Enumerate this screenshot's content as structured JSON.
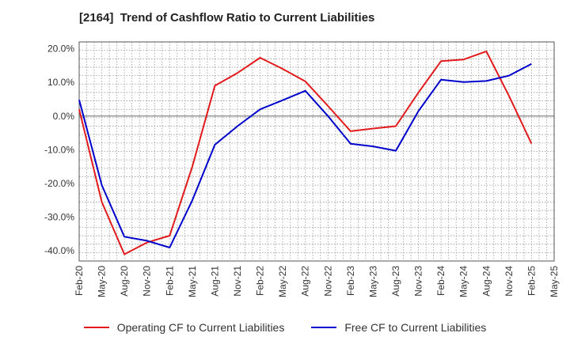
{
  "chart_data": {
    "type": "line",
    "title": "[2164]  Trend of Cashflow Ratio to Current Liabilities",
    "xlabel": "",
    "ylabel": "",
    "x": [
      "Feb-20",
      "May-20",
      "Aug-20",
      "Nov-20",
      "Feb-21",
      "May-21",
      "Aug-21",
      "Nov-21",
      "Feb-22",
      "May-22",
      "Aug-22",
      "Nov-22",
      "Feb-23",
      "May-23",
      "Aug-23",
      "Nov-23",
      "Feb-24",
      "May-24",
      "Aug-24",
      "Nov-24",
      "Feb-25",
      "May-25"
    ],
    "ylim": [
      -43,
      22
    ],
    "yticks": [
      20,
      10,
      0,
      -10,
      -20,
      -30,
      -40
    ],
    "ytick_labels": [
      "20.0%",
      "10.0%",
      "0.0%",
      "-10.0%",
      "-20.0%",
      "-30.0%",
      "-40.0%"
    ],
    "grid": true,
    "legend_position": "bottom",
    "series": [
      {
        "name": "Operating CF to Current Liabilities",
        "color": "#e31a1c",
        "values": [
          2.0,
          -25.5,
          -41.0,
          -37.5,
          -35.5,
          -15.0,
          9.0,
          12.8,
          17.3,
          14.0,
          10.3,
          3.0,
          -4.5,
          -3.7,
          -3.0,
          7.0,
          16.3,
          16.8,
          19.2,
          6.0,
          -8.2,
          null
        ]
      },
      {
        "name": "Free CF to Current Liabilities",
        "color": "#0000cc",
        "values": [
          4.8,
          -20.5,
          -35.8,
          -37.0,
          -39.0,
          -25.0,
          -8.5,
          -3.0,
          2.0,
          4.7,
          7.5,
          0.0,
          -8.2,
          -9.0,
          -10.3,
          1.5,
          10.8,
          10.1,
          10.4,
          12.0,
          15.5,
          null
        ]
      }
    ]
  }
}
